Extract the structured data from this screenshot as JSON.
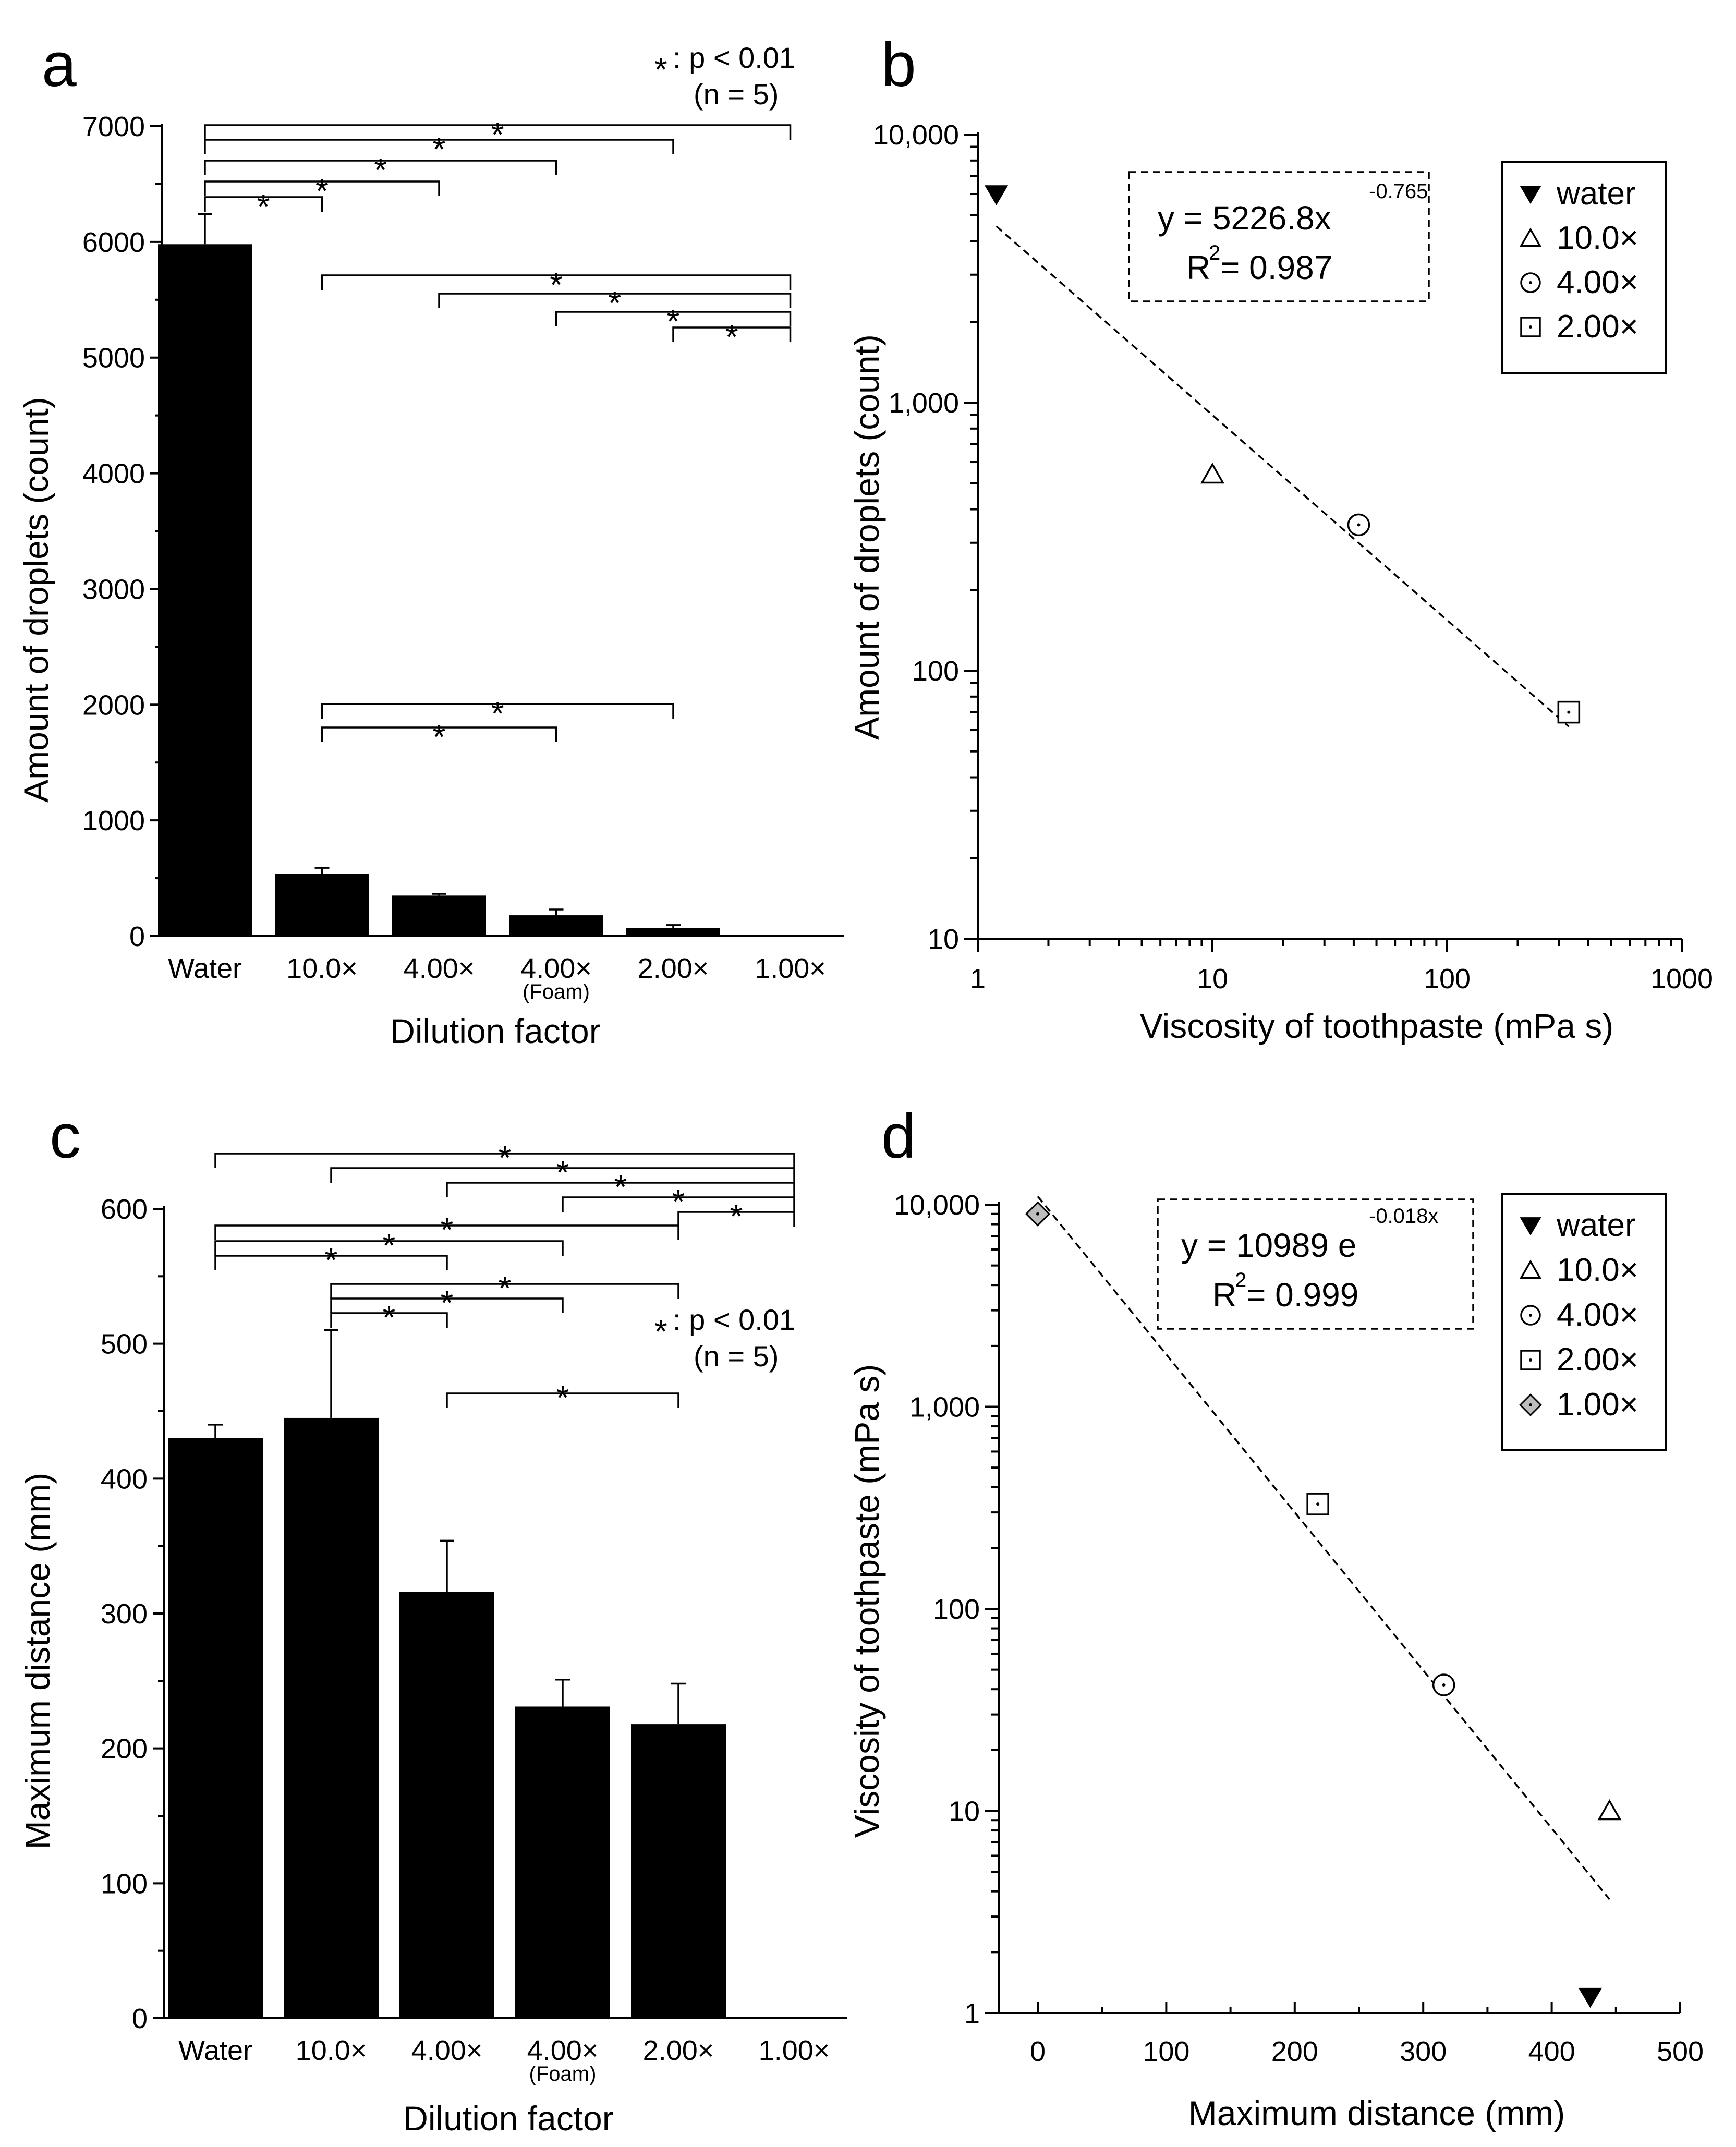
{
  "panels": {
    "a": {
      "label": "a",
      "xlabel": "Dilution factor",
      "ylabel": "Amount of droplets (count)",
      "significance": {
        "symbol": "*",
        "text": ": p < 0.01",
        "n": "(n = 5)"
      },
      "categories": [
        "Water",
        "10.0×",
        "4.00×",
        "4.00×",
        "2.00×",
        "1.00×"
      ],
      "foam_label": "(Foam)",
      "y_ticks": [
        "0",
        "1000",
        "2000",
        "3000",
        "4000",
        "5000",
        "6000",
        "7000"
      ]
    },
    "b": {
      "label": "b",
      "xlabel": "Viscosity of toothpaste (mPa s)",
      "ylabel": "Amount of droplets (count)",
      "x_ticks": [
        "1",
        "10",
        "100",
        "1000"
      ],
      "y_ticks": [
        "10",
        "100",
        "1,000",
        "10,000"
      ],
      "equation": {
        "lhs": "y = 5226.8x",
        "exponent": "-0.765",
        "r2_prefix": "R",
        "r2_sup": "2",
        "r2_value": "= 0.987"
      },
      "legend": [
        "water",
        "10.0×",
        "4.00×",
        "2.00×"
      ]
    },
    "c": {
      "label": "c",
      "xlabel": "Dilution factor",
      "ylabel": "Maximum distance (mm)",
      "significance": {
        "symbol": "*",
        "text": ": p < 0.01",
        "n": "(n = 5)"
      },
      "categories": [
        "Water",
        "10.0×",
        "4.00×",
        "4.00×",
        "2.00×",
        "1.00×"
      ],
      "foam_label": "(Foam)",
      "y_ticks": [
        "0",
        "100",
        "200",
        "300",
        "400",
        "500",
        "600"
      ]
    },
    "d": {
      "label": "d",
      "xlabel": "Maximum distance (mm)",
      "ylabel": "Viscosity of toothpaste (mPa s)",
      "x_ticks": [
        "0",
        "100",
        "200",
        "300",
        "400",
        "500"
      ],
      "y_ticks": [
        "1",
        "10",
        "100",
        "1,000",
        "10,000"
      ],
      "equation": {
        "lhs": "y = 10989 e",
        "exponent": "-0.018x",
        "r2_prefix": "R",
        "r2_sup": "2",
        "r2_value": "= 0.999"
      },
      "legend": [
        "water",
        "10.0×",
        "4.00×",
        "2.00×",
        "1.00×"
      ]
    }
  },
  "chart_data": [
    {
      "type": "bar",
      "panel": "a",
      "title": "",
      "xlabel": "Dilution factor",
      "ylabel": "Amount of droplets (count)",
      "categories": [
        "Water",
        "10.0×",
        "4.00×",
        "4.00× (Foam)",
        "2.00×",
        "1.00×"
      ],
      "values": [
        5980,
        540,
        350,
        180,
        70,
        0
      ],
      "errors": [
        260,
        50,
        15,
        50,
        25,
        0
      ],
      "ylim": [
        0,
        7000
      ],
      "comparisons": [
        [
          0,
          1
        ],
        [
          0,
          2
        ],
        [
          0,
          3
        ],
        [
          0,
          4
        ],
        [
          0,
          5
        ],
        [
          1,
          5
        ],
        [
          2,
          5
        ],
        [
          3,
          5
        ],
        [
          4,
          5
        ],
        [
          1,
          3
        ],
        [
          1,
          4
        ]
      ]
    },
    {
      "type": "scatter",
      "panel": "b",
      "xlabel": "Viscosity of toothpaste (mPa s)",
      "ylabel": "Amount of droplets (count)",
      "xscale": "log",
      "yscale": "log",
      "xlim": [
        1,
        1000
      ],
      "ylim": [
        10,
        10000
      ],
      "series": [
        {
          "name": "water",
          "marker": "triangle-down-filled",
          "x": [
            1.2
          ],
          "y": [
            5980
          ]
        },
        {
          "name": "10.0×",
          "marker": "triangle",
          "x": [
            10
          ],
          "y": [
            540
          ]
        },
        {
          "name": "4.00×",
          "marker": "circle",
          "x": [
            42
          ],
          "y": [
            350
          ]
        },
        {
          "name": "2.00×",
          "marker": "square",
          "x": [
            330
          ],
          "y": [
            70
          ]
        }
      ],
      "fit": {
        "type": "power",
        "a": 5226.8,
        "b": -0.765,
        "r2": 0.987,
        "x_range": [
          1.2,
          330
        ]
      },
      "legend_position": "top-right"
    },
    {
      "type": "bar",
      "panel": "c",
      "title": "",
      "xlabel": "Dilution factor",
      "ylabel": "Maximum distance (mm)",
      "categories": [
        "Water",
        "10.0×",
        "4.00×",
        "4.00× (Foam)",
        "2.00×",
        "1.00×"
      ],
      "values": [
        430,
        445,
        316,
        231,
        218,
        0
      ],
      "errors": [
        10,
        65,
        38,
        20,
        30,
        0
      ],
      "ylim": [
        0,
        600
      ],
      "comparisons": [
        [
          0,
          5
        ],
        [
          1,
          5
        ],
        [
          2,
          5
        ],
        [
          3,
          5
        ],
        [
          4,
          5
        ],
        [
          0,
          4
        ],
        [
          0,
          3
        ],
        [
          0,
          2
        ],
        [
          1,
          4
        ],
        [
          1,
          3
        ],
        [
          1,
          2
        ],
        [
          2,
          4
        ]
      ]
    },
    {
      "type": "scatter",
      "panel": "d",
      "xlabel": "Maximum distance (mm)",
      "ylabel": "Viscosity of toothpaste (mPa s)",
      "xscale": "linear",
      "yscale": "log",
      "xlim": [
        -10,
        500
      ],
      "ylim": [
        1,
        10000
      ],
      "series": [
        {
          "name": "water",
          "marker": "triangle-down-filled",
          "x": [
            430
          ],
          "y": [
            1.2
          ]
        },
        {
          "name": "10.0×",
          "marker": "triangle",
          "x": [
            445
          ],
          "y": [
            10
          ]
        },
        {
          "name": "4.00×",
          "marker": "circle",
          "x": [
            316
          ],
          "y": [
            42
          ]
        },
        {
          "name": "2.00×",
          "marker": "square",
          "x": [
            218
          ],
          "y": [
            330
          ]
        },
        {
          "name": "1.00×",
          "marker": "diamond-gray",
          "x": [
            0
          ],
          "y": [
            9000
          ]
        }
      ],
      "fit": {
        "type": "exponential",
        "a": 10989,
        "b": -0.018,
        "r2": 0.999,
        "x_range": [
          0,
          445
        ]
      },
      "legend_position": "top-right"
    }
  ]
}
